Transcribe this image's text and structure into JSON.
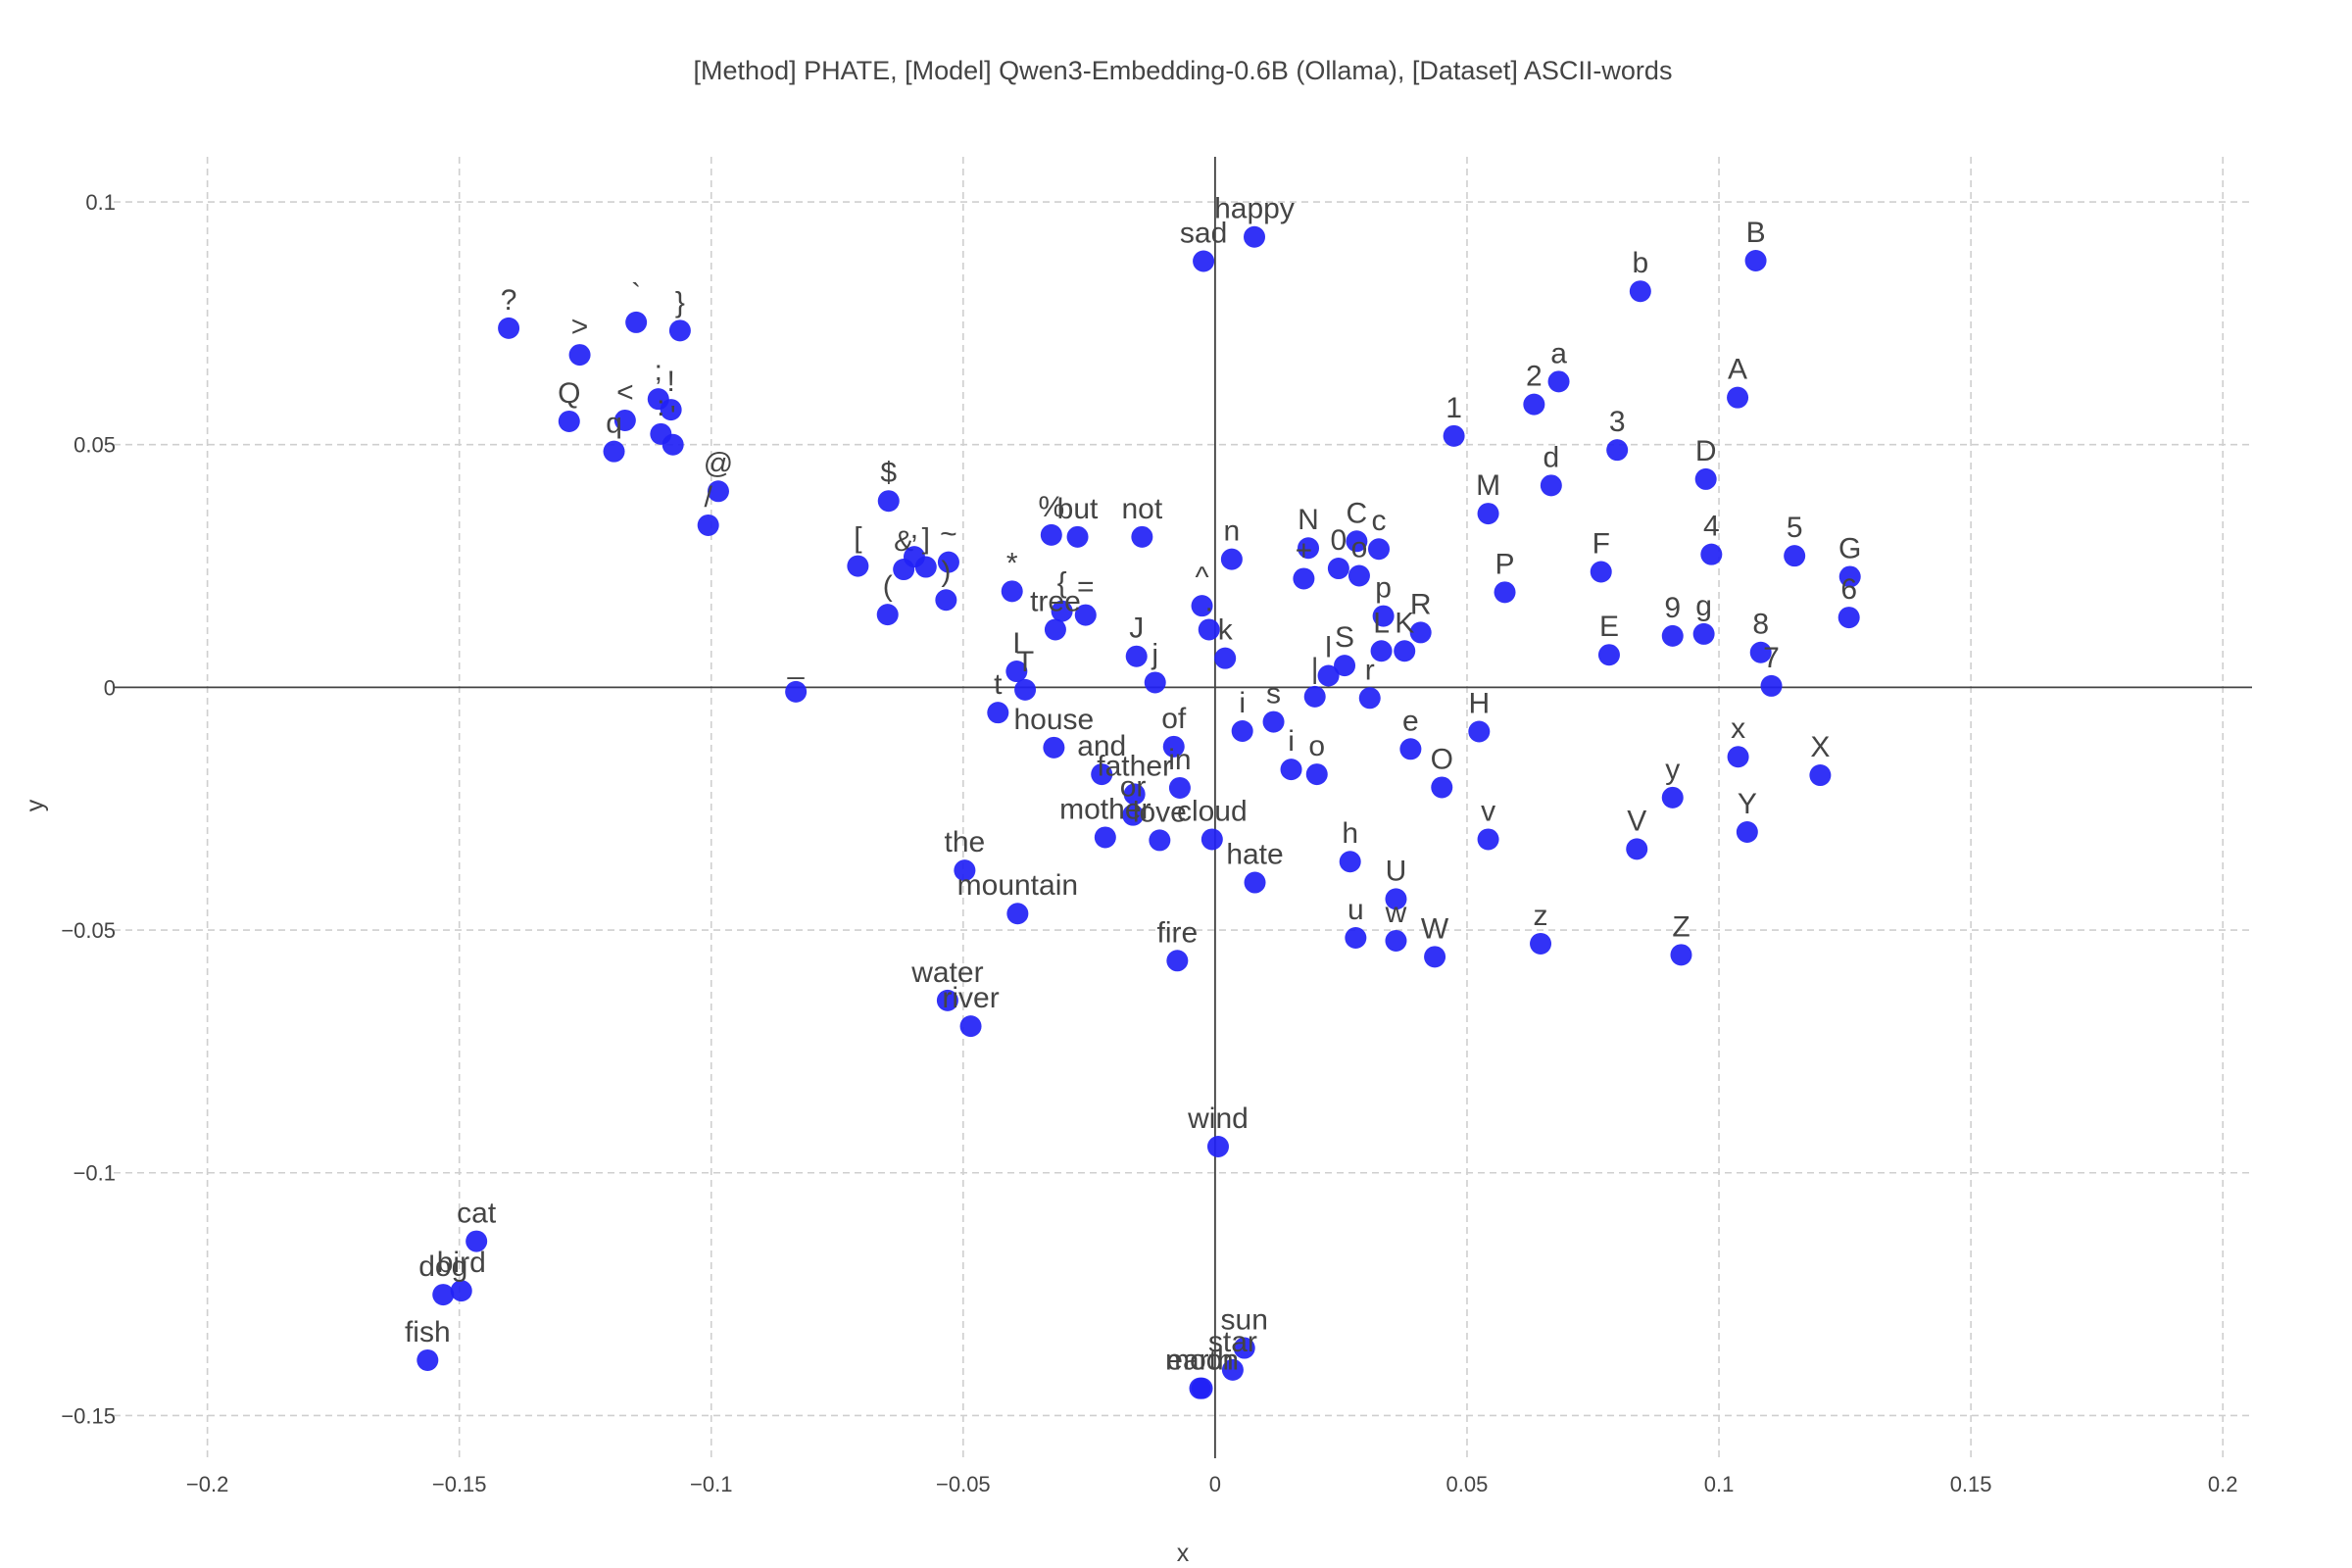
{
  "chart_data": {
    "type": "scatter",
    "title": "[Method] PHATE, [Model] Qwen3-Embedding-0.6B (Ollama), [Dataset] ASCII-words",
    "xlabel": "x",
    "ylabel": "y",
    "xlim": [
      -0.2186,
      0.2058
    ],
    "ylim": [
      -0.1588,
      0.1093
    ],
    "xticks": [
      {
        "value": -0.2,
        "label": "−0.2"
      },
      {
        "value": -0.15,
        "label": "−0.15"
      },
      {
        "value": -0.1,
        "label": "−0.1"
      },
      {
        "value": -0.05,
        "label": "−0.05"
      },
      {
        "value": 0,
        "label": "0"
      },
      {
        "value": 0.05,
        "label": "0.05"
      },
      {
        "value": 0.1,
        "label": "0.1"
      },
      {
        "value": 0.15,
        "label": "0.15"
      },
      {
        "value": 0.2,
        "label": "0.2"
      }
    ],
    "yticks": [
      {
        "value": -0.15,
        "label": "−0.15"
      },
      {
        "value": -0.1,
        "label": "−0.1"
      },
      {
        "value": -0.05,
        "label": "−0.05"
      },
      {
        "value": 0,
        "label": "0"
      },
      {
        "value": 0.05,
        "label": "0.05"
      },
      {
        "value": 0.1,
        "label": "0.1"
      }
    ],
    "grid": true,
    "marker_color": "#2121f5",
    "points": [
      {
        "label": "happy",
        "x": 0.0078,
        "y": 0.0928
      },
      {
        "label": "sad",
        "x": -0.0023,
        "y": 0.0878
      },
      {
        "label": "b",
        "x": 0.0844,
        "y": 0.0816
      },
      {
        "label": "B",
        "x": 0.1073,
        "y": 0.0879
      },
      {
        "label": "?",
        "x": -0.1402,
        "y": 0.074
      },
      {
        "label": ">",
        "x": -0.1261,
        "y": 0.0685
      },
      {
        "label": "`",
        "x": -0.1149,
        "y": 0.0752
      },
      {
        "label": "}",
        "x": -0.1062,
        "y": 0.0735
      },
      {
        "label": "Q",
        "x": -0.1282,
        "y": 0.0548
      },
      {
        "label": "<",
        "x": -0.1171,
        "y": 0.055
      },
      {
        "label": "q",
        "x": -0.1193,
        "y": 0.0486
      },
      {
        "label": ";",
        "x": -0.1105,
        "y": 0.0594
      },
      {
        "label": "!",
        "x": -0.108,
        "y": 0.0572
      },
      {
        "label": ":",
        "x": -0.11,
        "y": 0.0522
      },
      {
        "label": "'",
        "x": -0.1076,
        "y": 0.05
      },
      {
        "label": "@",
        "x": -0.0986,
        "y": 0.0404
      },
      {
        "label": "/",
        "x": -0.1006,
        "y": 0.0334
      },
      {
        "label": "a",
        "x": 0.0682,
        "y": 0.063
      },
      {
        "label": "2",
        "x": 0.0633,
        "y": 0.0583
      },
      {
        "label": "A",
        "x": 0.1037,
        "y": 0.0597
      },
      {
        "label": "1",
        "x": 0.0474,
        "y": 0.0518
      },
      {
        "label": "3",
        "x": 0.0798,
        "y": 0.0489
      },
      {
        "label": "d",
        "x": 0.0667,
        "y": 0.0416
      },
      {
        "label": "D",
        "x": 0.0974,
        "y": 0.0429
      },
      {
        "label": "M",
        "x": 0.0542,
        "y": 0.0358
      },
      {
        "label": "$",
        "x": -0.0648,
        "y": 0.0384
      },
      {
        "label": "%",
        "x": -0.0325,
        "y": 0.0314
      },
      {
        "label": "but",
        "x": -0.0273,
        "y": 0.031
      },
      {
        "label": "not",
        "x": -0.0145,
        "y": 0.031
      },
      {
        "label": "N",
        "x": 0.0185,
        "y": 0.0287
      },
      {
        "label": "C",
        "x": 0.0281,
        "y": 0.0301
      },
      {
        "label": "c",
        "x": 0.0325,
        "y": 0.0285
      },
      {
        "label": "n",
        "x": 0.0033,
        "y": 0.0264
      },
      {
        "label": "4",
        "x": 0.0985,
        "y": 0.0274
      },
      {
        "label": "5",
        "x": 0.115,
        "y": 0.0271
      },
      {
        "label": "G",
        "x": 0.126,
        "y": 0.0228
      },
      {
        "label": "[",
        "x": -0.0709,
        "y": 0.025
      },
      {
        "label": "&",
        "x": -0.0618,
        "y": 0.0243
      },
      {
        "label": ",",
        "x": -0.0597,
        "y": 0.0269
      },
      {
        "label": "]",
        "x": -0.0574,
        "y": 0.0248
      },
      {
        "label": "~",
        "x": -0.0529,
        "y": 0.0258
      },
      {
        "label": "(",
        "x": -0.065,
        "y": 0.015
      },
      {
        "label": ")",
        "x": -0.0534,
        "y": 0.018
      },
      {
        "label": "*",
        "x": -0.0403,
        "y": 0.0198
      },
      {
        "label": "+",
        "x": 0.0176,
        "y": 0.0224
      },
      {
        "label": "0",
        "x": 0.0245,
        "y": 0.0245
      },
      {
        "label": "o",
        "x": 0.0286,
        "y": 0.023
      },
      {
        "label": "F",
        "x": 0.0766,
        "y": 0.0238
      },
      {
        "label": "P",
        "x": 0.0575,
        "y": 0.0196
      },
      {
        "label": "{",
        "x": -0.0304,
        "y": 0.0157
      },
      {
        "label": "=",
        "x": -0.0257,
        "y": 0.0149
      },
      {
        "label": "tree",
        "x": -0.0317,
        "y": 0.0119
      },
      {
        "label": "^",
        "x": -0.0026,
        "y": 0.0168
      },
      {
        "label": ".",
        "x": -0.0012,
        "y": 0.0119
      },
      {
        "label": "k",
        "x": 0.002,
        "y": 0.006
      },
      {
        "label": "p",
        "x": 0.0334,
        "y": 0.0147
      },
      {
        "label": "R",
        "x": 0.0408,
        "y": 0.0113
      },
      {
        "label": "K",
        "x": 0.0376,
        "y": 0.0075
      },
      {
        "label": "L",
        "x": 0.033,
        "y": 0.0075
      },
      {
        "label": "S",
        "x": 0.0257,
        "y": 0.0045
      },
      {
        "label": "l",
        "x": 0.0225,
        "y": 0.0024
      },
      {
        "label": "r",
        "x": 0.0307,
        "y": -0.0022
      },
      {
        "label": "J",
        "x": -0.0156,
        "y": 0.0064
      },
      {
        "label": "j",
        "x": -0.0119,
        "y": 0.001
      },
      {
        "label": "I",
        "x": -0.0394,
        "y": 0.0033
      },
      {
        "label": "T",
        "x": -0.0377,
        "y": -0.0005
      },
      {
        "label": "t",
        "x": -0.0431,
        "y": -0.0052
      },
      {
        "label": "_",
        "x": -0.0832,
        "y": -0.0009
      },
      {
        "label": "9",
        "x": 0.0908,
        "y": 0.0106
      },
      {
        "label": "g",
        "x": 0.097,
        "y": 0.011
      },
      {
        "label": "8",
        "x": 0.1083,
        "y": 0.0072
      },
      {
        "label": "6",
        "x": 0.1258,
        "y": 0.0144
      },
      {
        "label": "E",
        "x": 0.0782,
        "y": 0.0067
      },
      {
        "label": "7",
        "x": 0.1104,
        "y": 0.0003
      },
      {
        "label": "s",
        "x": 0.0116,
        "y": -0.0071
      },
      {
        "label": "|",
        "x": 0.0198,
        "y": -0.0019
      },
      {
        "label": "i",
        "x": 0.0054,
        "y": -0.009
      },
      {
        "label": "of",
        "x": -0.0082,
        "y": -0.0122
      },
      {
        "label": "H",
        "x": 0.0524,
        "y": -0.0091
      },
      {
        "label": "e",
        "x": 0.0388,
        "y": -0.0127
      },
      {
        "label": "O",
        "x": 0.045,
        "y": -0.0206
      },
      {
        "label": "x",
        "x": 0.1038,
        "y": -0.0143
      },
      {
        "label": "X",
        "x": 0.1201,
        "y": -0.0181
      },
      {
        "label": "house",
        "x": -0.032,
        "y": -0.0124
      },
      {
        "label": "and",
        "x": -0.0225,
        "y": -0.0179
      },
      {
        "label": "in",
        "x": -0.007,
        "y": -0.0207
      },
      {
        "label": "father",
        "x": -0.016,
        "y": -0.022
      },
      {
        "label": "or",
        "x": -0.0163,
        "y": -0.0263
      },
      {
        "label": "i",
        "x": 0.0151,
        "y": -0.0169
      },
      {
        "label": "o",
        "x": 0.0202,
        "y": -0.0179
      },
      {
        "label": "y",
        "x": 0.0908,
        "y": -0.0227
      },
      {
        "label": "Y",
        "x": 0.1056,
        "y": -0.0298
      },
      {
        "label": "V",
        "x": 0.0837,
        "y": -0.0333
      },
      {
        "label": "v",
        "x": 0.0542,
        "y": -0.0313
      },
      {
        "label": "mother",
        "x": -0.0218,
        "y": -0.0309
      },
      {
        "label": "love",
        "x": -0.011,
        "y": -0.0315
      },
      {
        "label": "cloud",
        "x": -0.0006,
        "y": -0.0313
      },
      {
        "label": "hate",
        "x": 0.0079,
        "y": -0.0402
      },
      {
        "label": "h",
        "x": 0.0268,
        "y": -0.0359
      },
      {
        "label": "U",
        "x": 0.0359,
        "y": -0.0436
      },
      {
        "label": "the",
        "x": -0.0497,
        "y": -0.0377
      },
      {
        "label": "mountain",
        "x": -0.0392,
        "y": -0.0466
      },
      {
        "label": "fire",
        "x": -0.0075,
        "y": -0.0563
      },
      {
        "label": "u",
        "x": 0.0279,
        "y": -0.0516
      },
      {
        "label": "w",
        "x": 0.0359,
        "y": -0.0522
      },
      {
        "label": "W",
        "x": 0.0436,
        "y": -0.0555
      },
      {
        "label": "z",
        "x": 0.0646,
        "y": -0.0528
      },
      {
        "label": "Z",
        "x": 0.0925,
        "y": -0.0551
      },
      {
        "label": "water",
        "x": -0.0531,
        "y": -0.0645
      },
      {
        "label": "river",
        "x": -0.0485,
        "y": -0.0698
      },
      {
        "label": "wind",
        "x": 0.0006,
        "y": -0.0946
      },
      {
        "label": "cat",
        "x": -0.1466,
        "y": -0.1141
      },
      {
        "label": "bird",
        "x": -0.1496,
        "y": -0.1243
      },
      {
        "label": "dog",
        "x": -0.1532,
        "y": -0.1251
      },
      {
        "label": "fish",
        "x": -0.1563,
        "y": -0.1386
      },
      {
        "label": "sun",
        "x": 0.0058,
        "y": -0.1361
      },
      {
        "label": "star",
        "x": 0.0035,
        "y": -0.1406
      },
      {
        "label": "moon",
        "x": -0.0026,
        "y": -0.1444
      },
      {
        "label": "earth",
        "x": -0.003,
        "y": -0.1444
      }
    ]
  }
}
